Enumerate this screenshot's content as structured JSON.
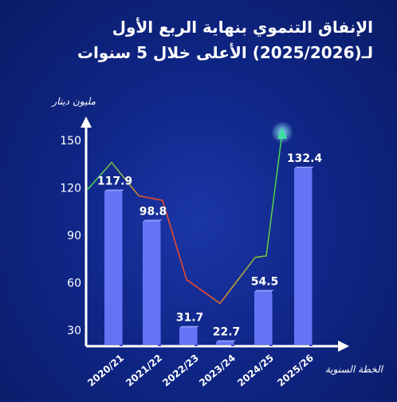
{
  "title_lines": [
    "الإنفاق التنموي بنهاية الربع الأول",
    "لـ(2025/2026) الأعلى خلال 5 سنوات"
  ],
  "chart_data": {
    "type": "bar",
    "title": "الإنفاق التنموي بنهاية الربع الأول لـ(2025/2026) الأعلى خلال 5 سنوات",
    "ylabel": "مليون دينار",
    "xlabel": "الخطة السنوية",
    "categories": [
      "2020/21",
      "2021/22",
      "2022/23",
      "2023/24",
      "2024/25",
      "2025/26"
    ],
    "values": [
      117.9,
      98.8,
      31.7,
      22.7,
      54.5,
      132.4
    ],
    "value_labels": [
      "117.9",
      "98.8",
      "31.7",
      "22.7",
      "54.5",
      "132.4"
    ],
    "y_ticks": [
      30,
      60,
      90,
      120,
      150
    ],
    "ylim": [
      22,
      158
    ],
    "grid": false,
    "trend_line": {
      "type": "line",
      "values": [
        136,
        115,
        112,
        62,
        47,
        76,
        77,
        155
      ],
      "color_up": "#39d353",
      "color_down": "#e8492c"
    },
    "colors": {
      "bar": "#6374f5",
      "bar_side": "#3e4ec9",
      "text": "#ffffff"
    }
  }
}
